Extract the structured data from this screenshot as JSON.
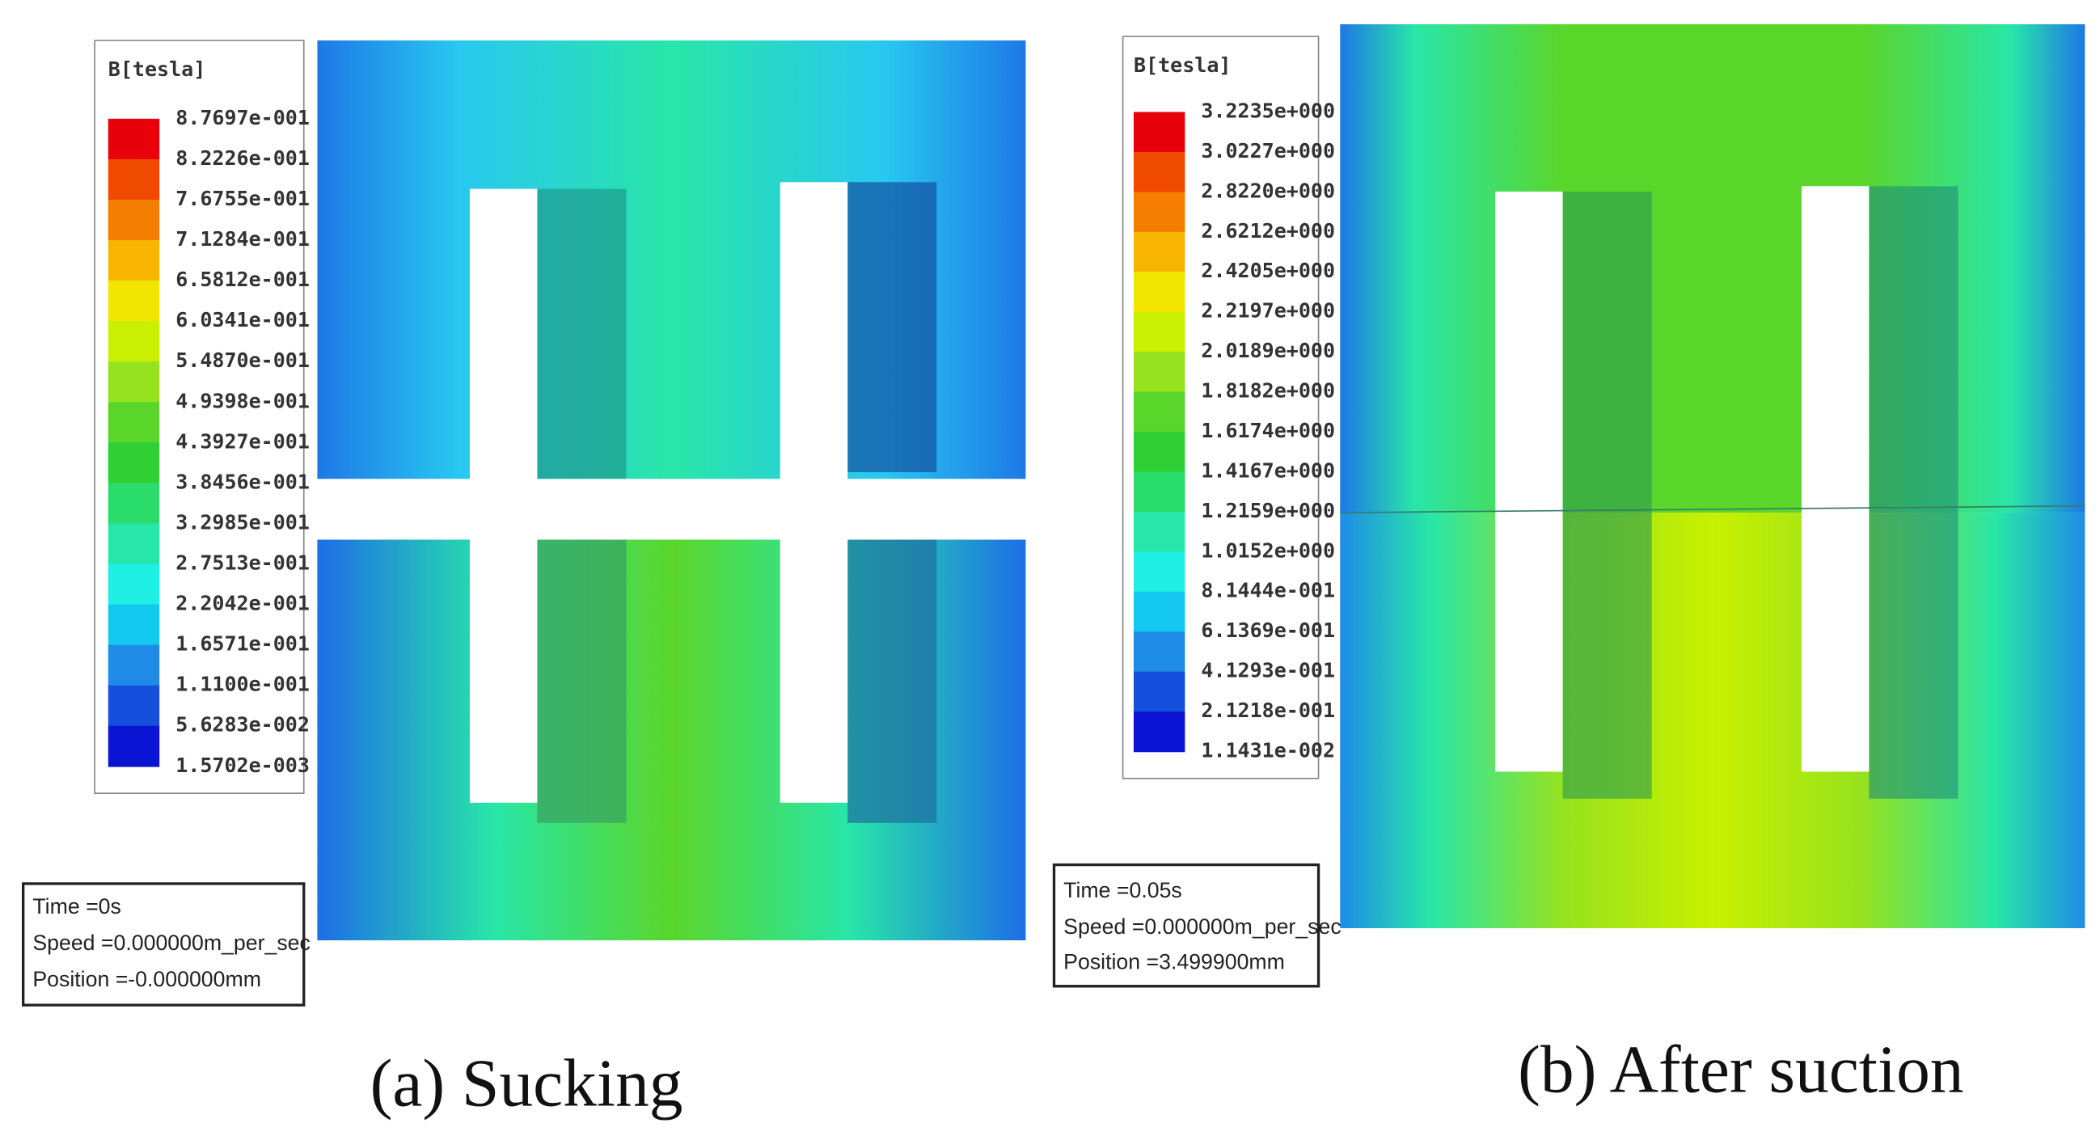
{
  "panels": [
    {
      "legend": {
        "title": "B[tesla]",
        "labels": [
          "8.7697e-001",
          "8.2226e-001",
          "7.6755e-001",
          "7.1284e-001",
          "6.5812e-001",
          "6.0341e-001",
          "5.4870e-001",
          "4.9398e-001",
          "4.3927e-001",
          "3.8456e-001",
          "3.2985e-001",
          "2.7513e-001",
          "2.2042e-001",
          "1.6571e-001",
          "1.1100e-001",
          "5.6283e-002",
          "1.5702e-003"
        ]
      },
      "info": [
        "Time =0s",
        "Speed =0.000000m_per_sec",
        "Position =-0.000000mm"
      ],
      "caption": "(a) Sucking"
    },
    {
      "legend": {
        "title": "B[tesla]",
        "labels": [
          "3.2235e+000",
          "3.0227e+000",
          "2.8220e+000",
          "2.6212e+000",
          "2.4205e+000",
          "2.2197e+000",
          "2.0189e+000",
          "1.8182e+000",
          "1.6174e+000",
          "1.4167e+000",
          "1.2159e+000",
          "1.0152e+000",
          "8.1444e-001",
          "6.1369e-001",
          "4.1293e-001",
          "2.1218e-001",
          "1.1431e-002"
        ]
      },
      "info": [
        "Time =0.05s",
        "Speed =0.000000m_per_sec",
        "Position =3.499900mm"
      ],
      "caption": "(b) After suction"
    }
  ]
}
